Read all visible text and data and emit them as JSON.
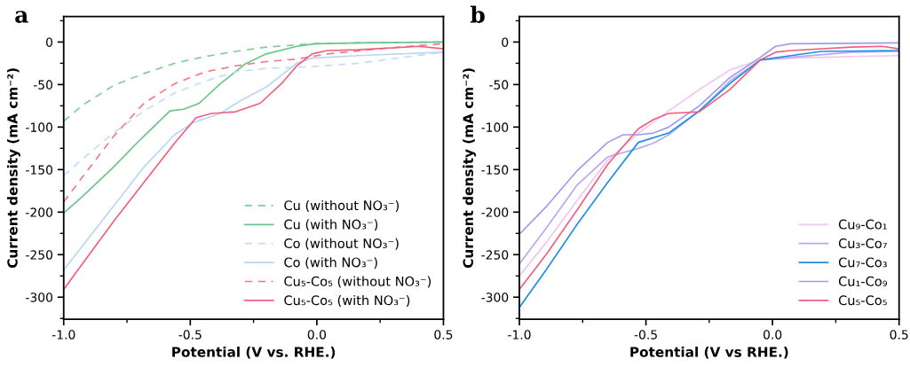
{
  "chart_data": [
    {
      "type": "line",
      "title": "a",
      "xlabel": "Potential (V vs. RHE.)",
      "ylabel": "Current density (mA cm⁻²)",
      "xlim": [
        -1.0,
        0.5
      ],
      "xticks": [
        {
          "value": -1.0,
          "label": "-1.0"
        },
        {
          "value": -0.5,
          "label": "-0.5"
        },
        {
          "value": 0.0,
          "label": "0.0"
        },
        {
          "value": 0.5,
          "label": "0.5"
        }
      ],
      "ylim": [
        -326,
        30
      ],
      "yticks": [
        -300,
        -250,
        -200,
        -150,
        -100,
        -50,
        0
      ],
      "grid": false,
      "legend": "bottom right",
      "marker": "none",
      "series": [
        {
          "name": "Cu (without NO₃⁻)",
          "color": "#7fcf9a",
          "line_style": "dashed",
          "x": [
            -1.0,
            -0.924,
            -0.803,
            -0.683,
            -0.562,
            -0.441,
            -0.32,
            -0.2,
            -0.019,
            0.162,
            0.5
          ],
          "values": [
            -93,
            -74,
            -51,
            -37,
            -25,
            -17,
            -11,
            -6,
            -2,
            -1,
            0
          ]
        },
        {
          "name": "Cu (with NO₃⁻)",
          "color": "#6cc487",
          "line_style": "solid",
          "x": [
            -1.0,
            -0.924,
            -0.803,
            -0.695,
            -0.58,
            -0.526,
            -0.465,
            -0.381,
            -0.284,
            -0.2,
            -0.079,
            -0.007,
            0.162,
            0.5
          ],
          "values": [
            -201,
            -181,
            -147,
            -114,
            -81,
            -79,
            -72,
            -49,
            -26,
            -14,
            -5,
            -2,
            -1,
            0
          ]
        },
        {
          "name": "Co (without NO₃⁻)",
          "color": "#c4dcf7",
          "line_style": "dashed",
          "x": [
            -1.0,
            -0.924,
            -0.803,
            -0.683,
            -0.562,
            -0.441,
            -0.32,
            -0.2,
            -0.019,
            0.162,
            0.343,
            0.5
          ],
          "values": [
            -157,
            -137,
            -107,
            -81,
            -60,
            -46,
            -35,
            -31,
            -29,
            -25,
            -18,
            -12
          ]
        },
        {
          "name": "Co (with NO₃⁻)",
          "color": "#b8d6f5",
          "line_style": "solid",
          "x": [
            -1.0,
            -0.924,
            -0.803,
            -0.683,
            -0.562,
            -0.49,
            -0.381,
            -0.296,
            -0.2,
            -0.079,
            -0.019,
            0.162,
            0.5
          ],
          "values": [
            -268,
            -239,
            -193,
            -147,
            -109,
            -95,
            -84,
            -68,
            -53,
            -25,
            -19,
            -16,
            -12
          ]
        },
        {
          "name": "Cu₅-Co₅ (without NO₃⁻)",
          "color": "#f07890",
          "line_style": "dashed",
          "x": [
            -1.0,
            -0.924,
            -0.803,
            -0.683,
            -0.562,
            -0.441,
            -0.32,
            -0.2,
            -0.079,
            0.041,
            0.283,
            0.5
          ],
          "values": [
            -188,
            -158,
            -111,
            -72,
            -49,
            -35,
            -28,
            -23,
            -20,
            -14,
            -7,
            -2
          ]
        },
        {
          "name": "Cu₅-Co₅ (with NO₃⁻)",
          "color": "#f0607e",
          "line_style": "solid",
          "x": [
            -1.0,
            -0.924,
            -0.803,
            -0.683,
            -0.562,
            -0.477,
            -0.417,
            -0.32,
            -0.224,
            -0.14,
            -0.079,
            -0.019,
            0.041,
            0.162,
            0.404,
            0.5
          ],
          "values": [
            -291,
            -260,
            -211,
            -165,
            -119,
            -89,
            -84,
            -82,
            -72,
            -49,
            -28,
            -14,
            -10,
            -9,
            -5,
            -8
          ]
        }
      ]
    },
    {
      "type": "line",
      "title": "b",
      "xlabel": "Potential (V vs RHE.)",
      "ylabel": "Current density (mA cm⁻²)",
      "xlim": [
        -1.0,
        0.5
      ],
      "xticks": [
        {
          "value": -1.0,
          "label": "-1.0"
        },
        {
          "value": -0.5,
          "label": "-0.5"
        },
        {
          "value": 0.0,
          "label": "0.0"
        },
        {
          "value": 0.5,
          "label": "0.5"
        }
      ],
      "ylim": [
        -326,
        30
      ],
      "yticks": [
        -300,
        -250,
        -200,
        -150,
        -100,
        -50,
        0
      ],
      "grid": false,
      "legend": "bottom right",
      "marker": "none",
      "series": [
        {
          "name": "Cu₉-Co₁",
          "color": "#f2c4f2",
          "line_style": "solid",
          "x": [
            -1.0,
            -0.892,
            -0.771,
            -0.651,
            -0.53,
            -0.41,
            -0.289,
            -0.169,
            -0.048,
            0.072,
            0.313,
            0.5
          ],
          "values": [
            -275,
            -235,
            -186,
            -139,
            -107,
            -81,
            -56,
            -33,
            -21,
            -19,
            -17,
            -16
          ]
        },
        {
          "name": "Cu₃-Co₇",
          "color": "#b4aaf2",
          "line_style": "solid",
          "x": [
            -1.0,
            -0.892,
            -0.771,
            -0.651,
            -0.53,
            -0.47,
            -0.41,
            -0.289,
            -0.169,
            -0.048,
            0.072,
            0.313,
            0.5
          ],
          "values": [
            -261,
            -218,
            -168,
            -135,
            -125,
            -119,
            -109,
            -81,
            -46,
            -21,
            -18,
            -12,
            -11
          ]
        },
        {
          "name": "Cu₇-Co₃",
          "color": "#1e8fe0",
          "line_style": "solid",
          "x": [
            -1.0,
            -0.892,
            -0.771,
            -0.651,
            -0.53,
            -0.41,
            -0.289,
            -0.169,
            -0.048,
            0.072,
            0.193,
            0.5
          ],
          "values": [
            -312,
            -267,
            -214,
            -165,
            -118,
            -107,
            -81,
            -49,
            -21,
            -16,
            -11,
            -10
          ]
        },
        {
          "name": "Cu₁-Co₉",
          "color": "#9c9cf2",
          "line_style": "solid",
          "x": [
            -1.0,
            -0.892,
            -0.771,
            -0.651,
            -0.59,
            -0.53,
            -0.47,
            -0.41,
            -0.289,
            -0.169,
            -0.048,
            0.012,
            0.072,
            0.5
          ],
          "values": [
            -226,
            -193,
            -151,
            -118,
            -109,
            -109,
            -107,
            -100,
            -75,
            -42,
            -18,
            -5,
            -2,
            -1
          ]
        },
        {
          "name": "Cu₅-Co₅",
          "color": "#f0607e",
          "line_style": "solid",
          "x": [
            -1.0,
            -0.892,
            -0.771,
            -0.651,
            -0.53,
            -0.47,
            -0.41,
            -0.289,
            -0.169,
            -0.048,
            0.012,
            0.072,
            0.313,
            0.434,
            0.5
          ],
          "values": [
            -291,
            -249,
            -197,
            -144,
            -102,
            -91,
            -84,
            -82,
            -56,
            -21,
            -12,
            -10,
            -6,
            -5,
            -8
          ]
        }
      ]
    }
  ]
}
